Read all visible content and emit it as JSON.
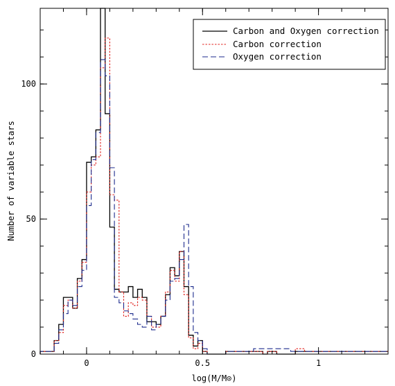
{
  "chart_data": {
    "type": "line",
    "xlabel": "log(M/M⊙)",
    "ylabel": "Number of variable stars",
    "xlim": [
      -0.2,
      1.3
    ],
    "ylim": [
      0,
      128
    ],
    "x_ticks": [
      0,
      0.5,
      1
    ],
    "x_tick_labels": [
      "0",
      "0.5",
      "1"
    ],
    "y_ticks": [
      0,
      50,
      100
    ],
    "y_tick_labels": [
      "0",
      "50",
      "100"
    ],
    "grid": false,
    "legend_position": "top-right",
    "bin_edges": [
      -0.2,
      -0.18,
      -0.16,
      -0.14,
      -0.12,
      -0.1,
      -0.08,
      -0.06,
      -0.04,
      -0.02,
      0,
      0.02,
      0.04,
      0.06,
      0.08,
      0.1,
      0.12,
      0.14,
      0.16,
      0.18,
      0.2,
      0.22,
      0.24,
      0.26,
      0.28,
      0.3,
      0.32,
      0.34,
      0.36,
      0.38,
      0.4,
      0.42,
      0.44,
      0.46,
      0.48,
      0.5,
      0.52,
      0.54,
      0.56,
      0.58,
      0.6,
      0.62,
      0.64,
      0.66,
      0.68,
      0.7,
      0.72,
      0.74,
      0.76,
      0.78,
      0.8,
      0.82,
      0.84,
      0.86,
      0.88,
      0.9,
      0.92,
      0.94,
      0.96,
      0.98,
      1,
      1.02,
      1.04,
      1.06,
      1.08,
      1.1,
      1.12,
      1.14,
      1.16,
      1.18,
      1.2,
      1.22,
      1.24,
      1.26,
      1.28,
      1.3
    ],
    "series": [
      {
        "name": "Carbon and Oxygen correction",
        "color": "#000000",
        "dash": "solid",
        "values": [
          1,
          1,
          1,
          5,
          11,
          21,
          21,
          17,
          28,
          35,
          71,
          73,
          83,
          128,
          89,
          47,
          24,
          23,
          23,
          25,
          21,
          24,
          21,
          12,
          12,
          11,
          14,
          22,
          32,
          29,
          38,
          25,
          7,
          3,
          5,
          1,
          0,
          0,
          0,
          0,
          1,
          1,
          1,
          1,
          1,
          1,
          1,
          1,
          0,
          1,
          1,
          0,
          0,
          0,
          0,
          1,
          1,
          1,
          1,
          1,
          1,
          1,
          1,
          1,
          1,
          1,
          1,
          1,
          1,
          1,
          1,
          1,
          1,
          1,
          1
        ]
      },
      {
        "name": "Carbon correction",
        "color": "#e0201c",
        "dash": "dotted",
        "values": [
          1,
          1,
          1,
          5,
          8,
          18,
          20,
          17,
          27,
          34,
          60,
          70,
          73,
          106,
          117,
          59,
          57,
          23,
          14,
          19,
          18,
          21,
          20,
          14,
          10,
          10,
          14,
          23,
          31,
          27,
          38,
          22,
          6,
          2,
          4,
          1,
          0,
          0,
          0,
          0,
          1,
          1,
          1,
          1,
          1,
          1,
          1,
          1,
          0,
          1,
          1,
          0,
          0,
          0,
          0,
          2,
          2,
          1,
          1,
          1,
          1,
          1,
          1,
          1,
          1,
          1,
          1,
          1,
          1,
          1,
          1,
          1,
          1,
          1,
          1
        ]
      },
      {
        "name": "Oxygen correction",
        "color": "#1b2a8c",
        "dash": "dashed",
        "values": [
          1,
          1,
          1,
          4,
          9,
          15,
          20,
          18,
          25,
          31,
          55,
          72,
          82,
          109,
          103,
          69,
          21,
          19,
          16,
          15,
          13,
          11,
          10,
          14,
          9,
          11,
          14,
          20,
          27,
          28,
          35,
          48,
          25,
          8,
          5,
          2,
          0,
          0,
          0,
          0,
          1,
          1,
          1,
          1,
          1,
          1,
          2,
          2,
          2,
          2,
          2,
          2,
          2,
          2,
          1,
          1,
          1,
          1,
          1,
          1,
          1,
          1,
          1,
          1,
          1,
          1,
          1,
          1,
          1,
          1,
          1,
          1,
          1,
          1,
          1
        ]
      }
    ]
  }
}
